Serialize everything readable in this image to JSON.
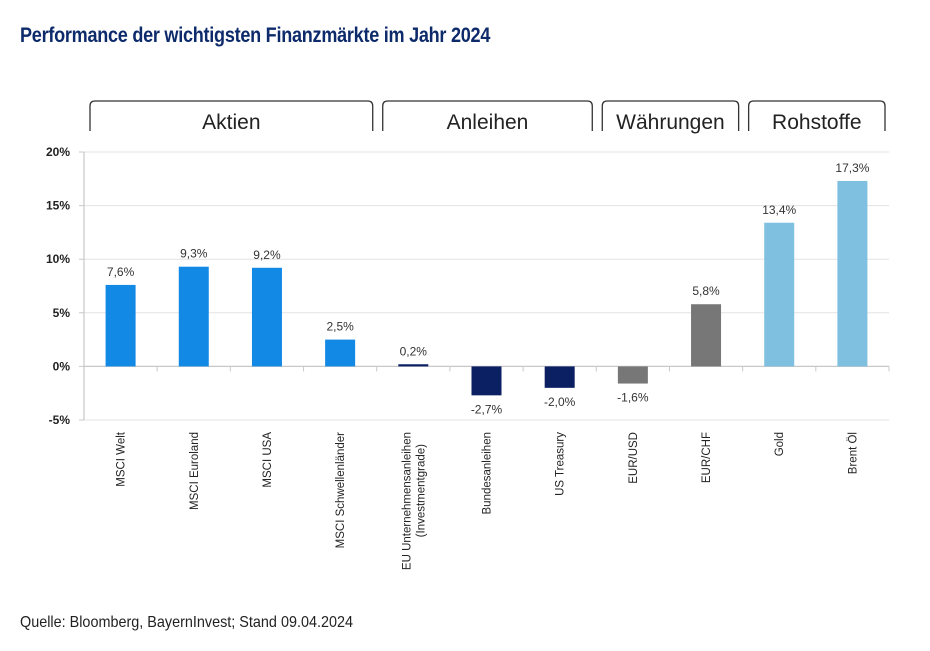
{
  "title": "Performance der wichtigsten Finanzmärkte im Jahr 2024",
  "source": "Quelle: Bloomberg, BayernInvest; Stand 09.04.2024",
  "colors": {
    "title": "#0d2a6b",
    "aktien": "#1389e6",
    "anleihen": "#0b1f63",
    "waehrungen": "#777777",
    "rohstoffe": "#7fbfdf",
    "grid": "#e3e3e3",
    "axis": "#c8c8c8"
  },
  "chart_data": {
    "type": "bar",
    "title": "Performance der wichtigsten Finanzmärkte im Jahr 2024",
    "xlabel": "",
    "ylabel": "",
    "ylim": [
      -5,
      20
    ],
    "yticks": [
      20,
      15,
      10,
      5,
      0,
      -5
    ],
    "ytick_labels": [
      "20%",
      "15%",
      "10%",
      "5%",
      "0%",
      "-5%"
    ],
    "grid": true,
    "legend": "none",
    "groups": [
      {
        "name": "Aktien",
        "start": 0,
        "end": 3,
        "color_key": "aktien"
      },
      {
        "name": "Anleihen",
        "start": 4,
        "end": 6,
        "color_key": "anleihen"
      },
      {
        "name": "Währungen",
        "start": 7,
        "end": 8,
        "color_key": "waehrungen"
      },
      {
        "name": "Rohstoffe",
        "start": 9,
        "end": 10,
        "color_key": "rohstoffe"
      }
    ],
    "categories": [
      [
        "MSCI Welt"
      ],
      [
        "MSCI Euroland"
      ],
      [
        "MSCI USA"
      ],
      [
        "MSCI Schwellenländer"
      ],
      [
        "EU Unternehmensanleihen",
        "(Investmentgrade)"
      ],
      [
        "Bundesanleihen"
      ],
      [
        "US Treasury"
      ],
      [
        "EUR/USD"
      ],
      [
        "EUR/CHF"
      ],
      [
        "Gold"
      ],
      [
        "Brent Öl"
      ]
    ],
    "values": [
      7.6,
      9.3,
      9.2,
      2.5,
      0.2,
      -2.7,
      -2.0,
      -1.6,
      5.8,
      13.4,
      17.3
    ],
    "value_labels": [
      "7,6%",
      "9,3%",
      "9,2%",
      "2,5%",
      "0,2%",
      "-2,7%",
      "-2,0%",
      "-1,6%",
      "5,8%",
      "13,4%",
      "17,3%"
    ]
  }
}
